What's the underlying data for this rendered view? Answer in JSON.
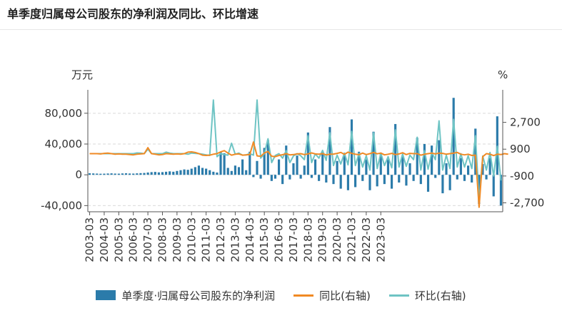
{
  "title": "单季度归属母公司股东的净利润及同比、环比增速",
  "chart_data": {
    "type": "bar",
    "left_unit": "万元",
    "right_unit": "%",
    "left_ticks": [
      "80,000",
      "40,000",
      "0",
      "-40,000"
    ],
    "left_tick_values": [
      80000,
      40000,
      0,
      -40000
    ],
    "left_ylim": [
      -48000,
      103000
    ],
    "right_ticks": [
      "2,700",
      "900",
      "-900",
      "-2,700"
    ],
    "right_tick_values": [
      2700,
      900,
      -900,
      -2700
    ],
    "right_ylim": [
      -3300,
      4500
    ],
    "x_tick_labels": [
      "2003-03",
      "2004-03",
      "2005-03",
      "2006-03",
      "2007-03",
      "2008-03",
      "2009-03",
      "2010-03",
      "2011-03",
      "2012-03",
      "2013-03",
      "2014-03",
      "2015-03",
      "2016-03",
      "2017-03",
      "2018-03",
      "2019-03",
      "2020-03",
      "2021-03",
      "2022-03",
      "2023-03"
    ],
    "first_year": 2003,
    "last_year": 2023,
    "last_quarter": 1,
    "colors": {
      "bar": "#2b7baa",
      "yoy": "#f08a24",
      "qoq": "#6ec4c4"
    },
    "series": [
      {
        "name": "单季度·归属母公司股东的净利润",
        "values": [
          2000,
          1800,
          1600,
          1400,
          1500,
          1700,
          1900,
          1600,
          1500,
          1800,
          2000,
          1700,
          1600,
          1900,
          2200,
          2400,
          3000,
          3500,
          3800,
          3200,
          3500,
          4000,
          4500,
          4000,
          5000,
          6000,
          7000,
          6500,
          8000,
          10000,
          12000,
          9000,
          8000,
          6000,
          4000,
          3000,
          30000,
          28000,
          9000,
          5000,
          12000,
          10000,
          20000,
          6000,
          30000,
          -3000,
          18000,
          -5000,
          35000,
          45000,
          -8000,
          -5000,
          20000,
          -12000,
          38000,
          -6000,
          15000,
          25000,
          -5000,
          12000,
          55000,
          -4000,
          20000,
          -8000,
          30000,
          -10000,
          62000,
          -12000,
          18000,
          -18000,
          25000,
          -20000,
          72000,
          -16000,
          30000,
          -8000,
          20000,
          -20000,
          56000,
          -15000,
          28000,
          -12000,
          20000,
          -18000,
          66000,
          -10000,
          24000,
          -14000,
          15000,
          -8000,
          48000,
          -12000,
          40000,
          -22000,
          38000,
          -4000,
          45000,
          -24000,
          15000,
          -20000,
          100000,
          -6000,
          22000,
          -8000,
          12000,
          -10000,
          60000,
          -38000,
          14000,
          -6000,
          22000,
          -28000,
          76000,
          -40000
        ]
      },
      {
        "name": "同比(右轴)",
        "values": [
          600,
          600,
          600,
          580,
          620,
          640,
          600,
          560,
          580,
          560,
          560,
          540,
          520,
          560,
          580,
          600,
          1000,
          600,
          560,
          520,
          540,
          600,
          580,
          560,
          580,
          560,
          600,
          700,
          720,
          680,
          600,
          500,
          480,
          500,
          560,
          600,
          720,
          800,
          640,
          500,
          560,
          580,
          500,
          520,
          540,
          1380,
          450,
          420,
          650,
          750,
          430,
          400,
          480,
          530,
          600,
          520,
          540,
          580,
          600,
          540,
          580,
          650,
          580,
          560,
          600,
          520,
          560,
          570,
          620,
          680,
          550,
          700,
          620,
          560,
          530,
          640,
          540,
          600,
          680,
          590,
          640,
          520,
          560,
          620,
          540,
          580,
          660,
          540,
          620,
          600,
          600,
          500,
          560,
          600,
          640,
          580,
          640,
          620,
          560,
          600,
          640,
          680,
          560,
          520,
          560,
          480,
          500,
          -3000,
          400,
          600,
          560,
          470,
          560,
          540,
          600,
          560
        ]
      },
      {
        "name": "环比(右轴)",
        "values": [
          600,
          600,
          600,
          600,
          600,
          600,
          600,
          600,
          600,
          600,
          600,
          600,
          600,
          650,
          640,
          600,
          900,
          600,
          600,
          600,
          600,
          700,
          640,
          600,
          600,
          600,
          600,
          560,
          640,
          620,
          600,
          560,
          520,
          480,
          4200,
          400,
          600,
          540,
          500,
          1300,
          560,
          640,
          500,
          520,
          600,
          500,
          4200,
          300,
          600,
          1600,
          0,
          480,
          600,
          300,
          800,
          0,
          450,
          600,
          460,
          200,
          1800,
          0,
          580,
          300,
          820,
          150,
          2000,
          -200,
          500,
          -100,
          640,
          -150,
          2100,
          -200,
          620,
          -300,
          460,
          -500,
          2000,
          -400,
          640,
          -200,
          400,
          -350,
          2200,
          -300,
          580,
          -250,
          500,
          200,
          1700,
          -500,
          800,
          -450,
          680,
          200,
          2800,
          -500,
          500,
          -400,
          2900,
          -300,
          600,
          -300,
          460,
          -400,
          1800,
          -2600,
          440,
          -500,
          680,
          -900,
          1100,
          -1200
        ]
      }
    ]
  }
}
